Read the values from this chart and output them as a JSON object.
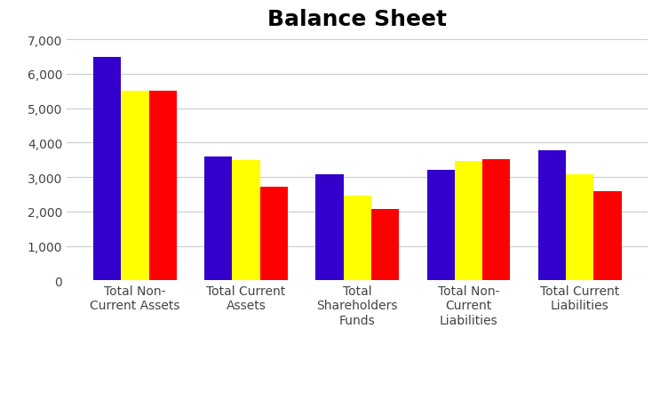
{
  "title": "Balance Sheet",
  "categories": [
    "Total Non-\nCurrent Assets",
    "Total Current\nAssets",
    "Total\nShareholders\nFunds",
    "Total Non-\nCurrent\nLiabilities",
    "Total Current\nLiabilities"
  ],
  "series": {
    "31st Dec 2023": [
      6500,
      3600,
      3075,
      3200,
      3775
    ],
    "31st Dec 2022": [
      5500,
      3500,
      2475,
      3475,
      3075
    ],
    "31st Dec 2021": [
      5500,
      2725,
      2075,
      3525,
      2600
    ]
  },
  "colors": {
    "31st Dec 2023": "#3300CC",
    "31st Dec 2022": "#FFFF00",
    "31st Dec 2021": "#FF0000"
  },
  "ylim": [
    0,
    7000
  ],
  "yticks": [
    0,
    1000,
    2000,
    3000,
    4000,
    5000,
    6000,
    7000
  ],
  "ytick_labels": [
    "0",
    "1,000",
    "2,000",
    "3,000",
    "4,000",
    "5,000",
    "6,000",
    "7,000"
  ],
  "background_color": "#FFFFFF",
  "grid_color": "#CCCCCC",
  "title_fontsize": 18,
  "title_fontweight": "bold",
  "bar_width": 0.25,
  "tick_fontsize": 10,
  "legend_fontsize": 10
}
